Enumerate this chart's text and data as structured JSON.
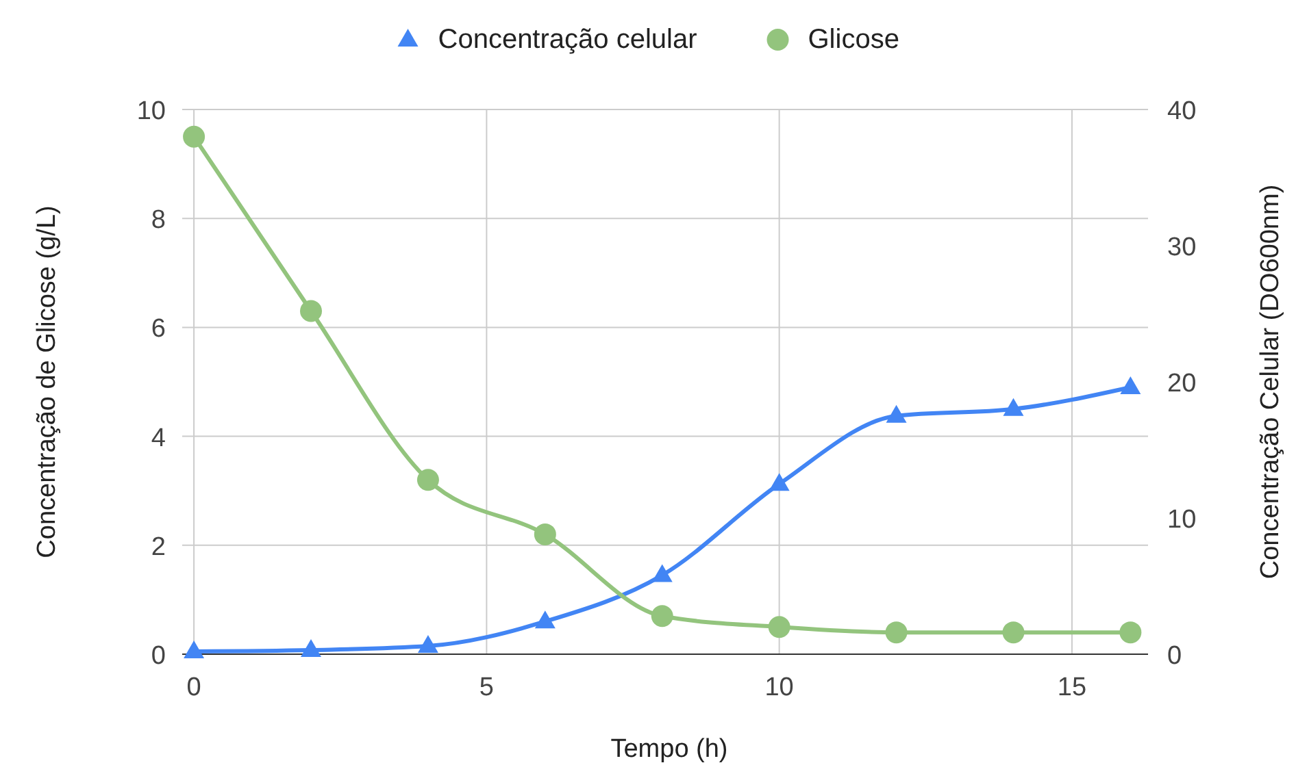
{
  "chart_data": {
    "type": "line",
    "xlabel": "Tempo (h)",
    "ylabel": "Concentração de Glicose (g/L)",
    "y2label": "Concentração Celular (DO600nm)",
    "x": [
      0,
      2,
      4,
      6,
      8,
      10,
      12,
      14,
      16
    ],
    "series": [
      {
        "name": "Concentração celular",
        "color": "#4285f4",
        "axis": "y2",
        "marker": "triangle",
        "values": [
          0.2,
          0.3,
          0.6,
          2.4,
          5.8,
          12.5,
          17.5,
          18,
          19.6
        ]
      },
      {
        "name": "Glicose",
        "color": "#93c47d",
        "marker": "circle",
        "values": [
          9.5,
          6.3,
          3.2,
          2.2,
          0.7,
          0.5,
          0.4,
          0.4,
          0.4
        ]
      }
    ],
    "xlim": [
      -0.2,
      16.3
    ],
    "xticks": [
      0,
      5,
      10,
      15
    ],
    "ylim": [
      0,
      10
    ],
    "yticks": [
      0,
      2,
      4,
      6,
      8,
      10
    ],
    "y2lim": [
      0,
      40
    ],
    "y2ticks": [
      0,
      10,
      20,
      30,
      40
    ],
    "grid": true,
    "legend": "top"
  }
}
